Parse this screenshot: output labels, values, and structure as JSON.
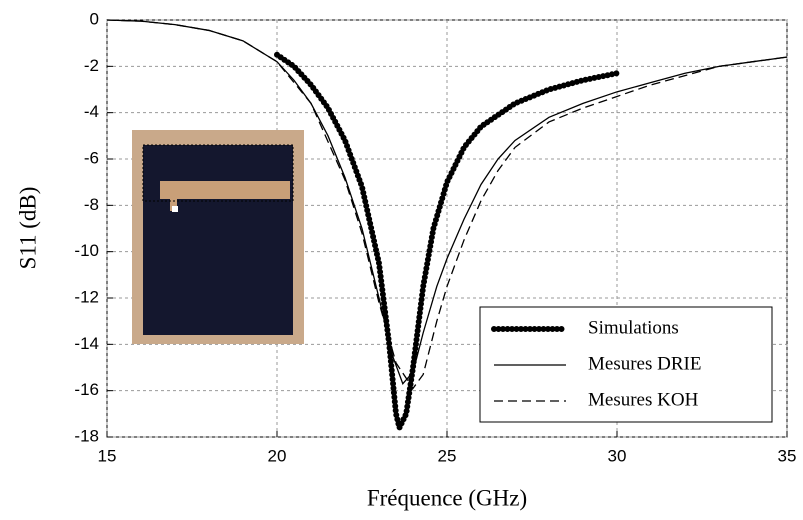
{
  "chart_data": {
    "type": "line",
    "xlabel": "Fréquence (GHz)",
    "ylabel": "S11 (dB)",
    "xlim": [
      15,
      35
    ],
    "ylim": [
      -18,
      0
    ],
    "xticks": [
      15,
      20,
      25,
      30,
      35
    ],
    "yticks": [
      0,
      -2,
      -4,
      -6,
      -8,
      -10,
      -12,
      -14,
      -16,
      -18
    ],
    "grid": true,
    "legend": "lower right",
    "series": [
      {
        "name": "Simulations",
        "color": "#000000",
        "style": "dotted",
        "x": [
          20,
          20.5,
          21,
          21.5,
          22,
          22.5,
          23,
          23.3,
          23.5,
          23.6,
          23.8,
          24,
          24.3,
          24.6,
          25,
          25.5,
          26,
          27,
          28,
          29,
          30
        ],
        "values": [
          -1.5,
          -2.0,
          -2.8,
          -3.8,
          -5.2,
          -7.2,
          -10.5,
          -14,
          -17,
          -17.6,
          -17,
          -15,
          -11.5,
          -9,
          -7,
          -5.5,
          -4.6,
          -3.6,
          -3.0,
          -2.6,
          -2.3
        ]
      },
      {
        "name": "Mesures DRIE",
        "color": "#000000",
        "style": "solid",
        "x": [
          15,
          16,
          17,
          18,
          19,
          20,
          20.5,
          21,
          21.5,
          22,
          22.5,
          23,
          23.4,
          23.7,
          24,
          24.3,
          24.7,
          25,
          25.5,
          26,
          26.5,
          27,
          28,
          29,
          30,
          31,
          32,
          33,
          34,
          35
        ],
        "values": [
          0,
          -0.05,
          -0.2,
          -0.45,
          -0.9,
          -1.8,
          -2.6,
          -3.6,
          -5,
          -6.8,
          -9,
          -12,
          -14.5,
          -15.7,
          -15.2,
          -13.5,
          -11.5,
          -10.3,
          -8.6,
          -7.1,
          -6,
          -5.2,
          -4.2,
          -3.6,
          -3.1,
          -2.7,
          -2.3,
          -2.0,
          -1.8,
          -1.6
        ]
      },
      {
        "name": "Mesures KOH",
        "color": "#000000",
        "style": "dashed",
        "x": [
          15,
          16,
          17,
          18,
          19,
          20,
          21,
          22,
          22.5,
          23,
          23.5,
          24,
          24.3,
          24.7,
          25,
          25.5,
          26,
          26.5,
          27,
          28,
          29,
          30,
          31,
          32,
          33,
          34,
          35
        ],
        "values": [
          0,
          -0.05,
          -0.2,
          -0.45,
          -0.9,
          -1.8,
          -3.6,
          -6.9,
          -9.2,
          -12.2,
          -14.8,
          -15.9,
          -15.3,
          -13,
          -11.5,
          -9.5,
          -7.8,
          -6.5,
          -5.5,
          -4.4,
          -3.8,
          -3.3,
          -2.8,
          -2.4,
          -2.0,
          -1.8,
          -1.6
        ]
      }
    ]
  }
}
